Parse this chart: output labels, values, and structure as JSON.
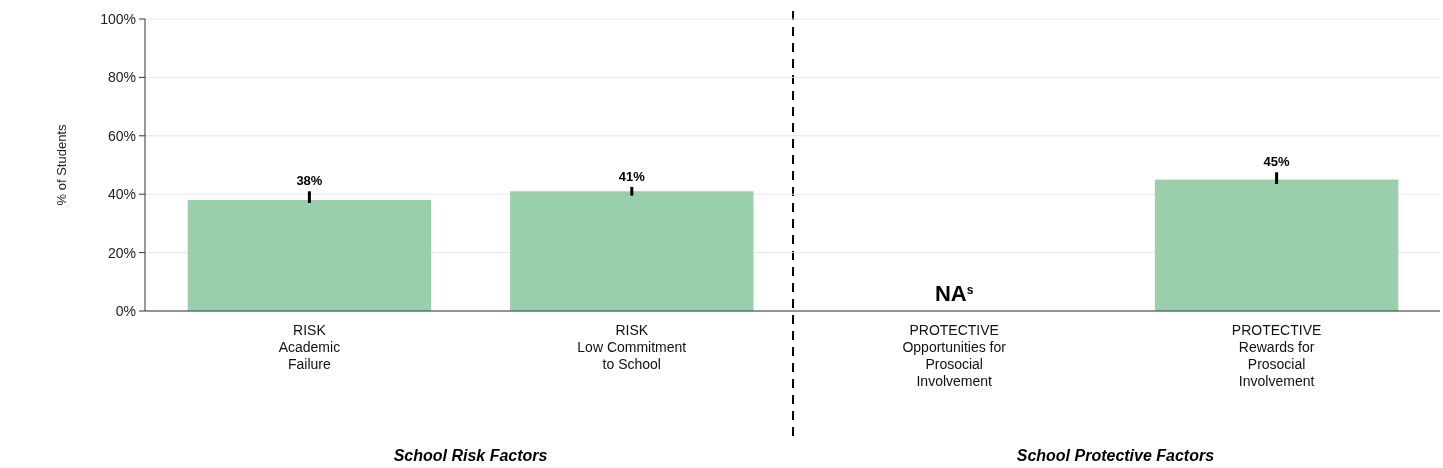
{
  "chart_data": {
    "type": "bar",
    "ylabel": "% of Students",
    "categories": [
      "RISK\nAcademic\nFailure",
      "RISK\nLow Commitment\nto School",
      "PROTECTIVE\nOpportunities for\nProsocial\nInvolvement",
      "PROTECTIVE\nRewards for\nProsocial\nInvolvement"
    ],
    "values": [
      38,
      41,
      null,
      45
    ],
    "errors": [
      [
        37,
        41
      ],
      [
        39.5,
        42.5
      ],
      null,
      [
        43.5,
        47.5
      ]
    ],
    "value_labels": [
      "38%",
      "41%",
      null,
      "45%"
    ],
    "color": "#99cfab",
    "ylim": [
      0,
      100
    ],
    "yticks": [
      {
        "value": 0,
        "label": "0%"
      },
      {
        "value": 20,
        "label": "20%"
      },
      {
        "value": 40,
        "label": "40%"
      },
      {
        "value": 60,
        "label": "60%"
      },
      {
        "value": 80,
        "label": "80%"
      },
      {
        "value": 100,
        "label": "100%"
      }
    ],
    "grid": "y",
    "annotations": [
      "NA$^{s}$",
      "School Risk Factors",
      "School Protective Factors"
    ]
  }
}
